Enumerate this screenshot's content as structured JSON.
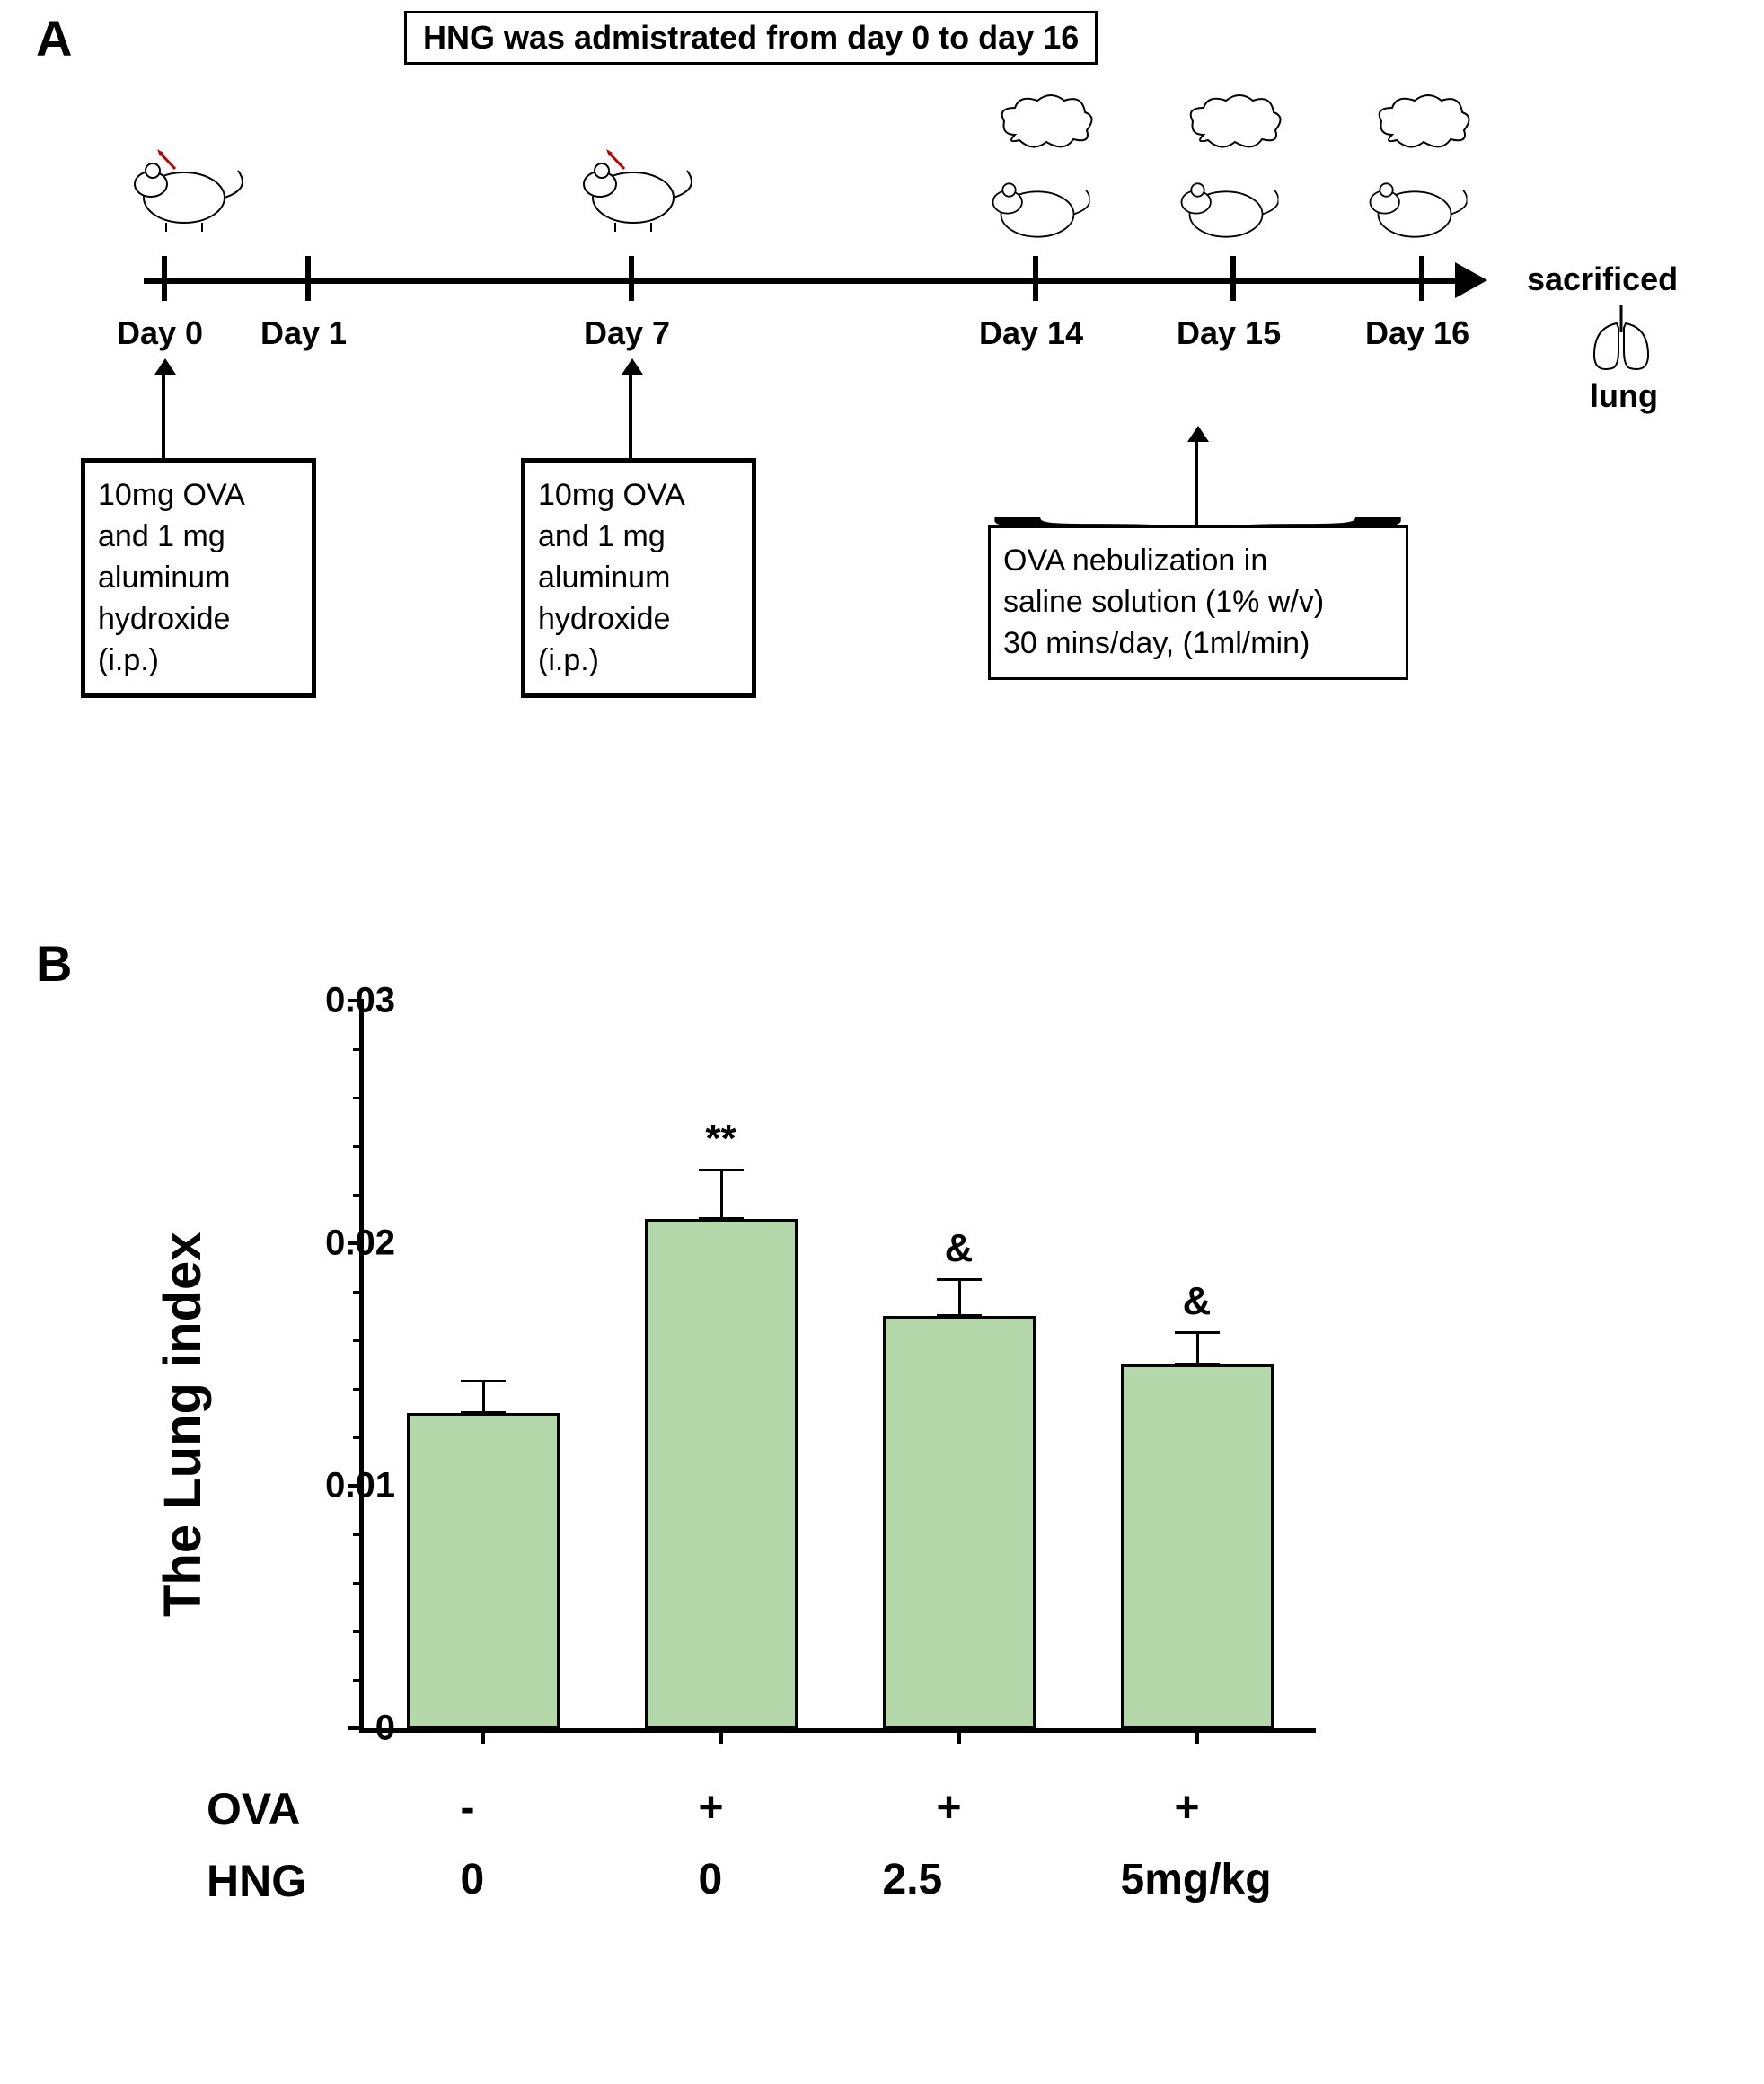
{
  "panelA": {
    "label": "A",
    "hng_note": "HNG was admistrated from day 0  to day 16",
    "days": [
      {
        "key": "d0",
        "label": "Day 0",
        "x": 145
      },
      {
        "key": "d1",
        "label": "Day 1",
        "x": 300
      },
      {
        "key": "d7",
        "label": "Day 7",
        "x": 650
      },
      {
        "key": "d14",
        "label": "Day 14",
        "x": 1100
      },
      {
        "key": "d15",
        "label": "Day 15",
        "x": 1320
      },
      {
        "key": "d16",
        "label": "Day 16",
        "x": 1530
      }
    ],
    "sacrificed_label": "sacrificed",
    "lung_label": "lung",
    "ova_box1": "10mg OVA\nand 1 mg\naluminum\nhydroxide\n(i.p.)",
    "ova_box2": "10mg OVA\nand 1 mg\naluminum\nhydroxide\n(i.p.)",
    "nebulization_box": "OVA nebulization in\nsaline solution (1% w/v)\n30 mins/day, (1ml/min)"
  },
  "panelB": {
    "label": "B",
    "type": "bar",
    "ylabel": "The Lung index",
    "ylim": [
      0,
      0.03
    ],
    "yticks": [
      0,
      0.01,
      0.02,
      0.03
    ],
    "minor_step": 0.002,
    "bar_color": "#b4d8a9",
    "border_color": "#000000",
    "background_color": "#ffffff",
    "bars": [
      {
        "ova": "-",
        "hng": "0",
        "value": 0.013,
        "err": 0.0013,
        "sig": ""
      },
      {
        "ova": "+",
        "hng": "0",
        "value": 0.021,
        "err": 0.002,
        "sig": "**"
      },
      {
        "ova": "+",
        "hng": "2.5",
        "value": 0.017,
        "err": 0.0015,
        "sig": "&"
      },
      {
        "ova": "+",
        "hng": "5mg/kg",
        "value": 0.015,
        "err": 0.0013,
        "sig": "&"
      }
    ],
    "x_headers": {
      "ova": "OVA",
      "hng": "HNG"
    }
  }
}
